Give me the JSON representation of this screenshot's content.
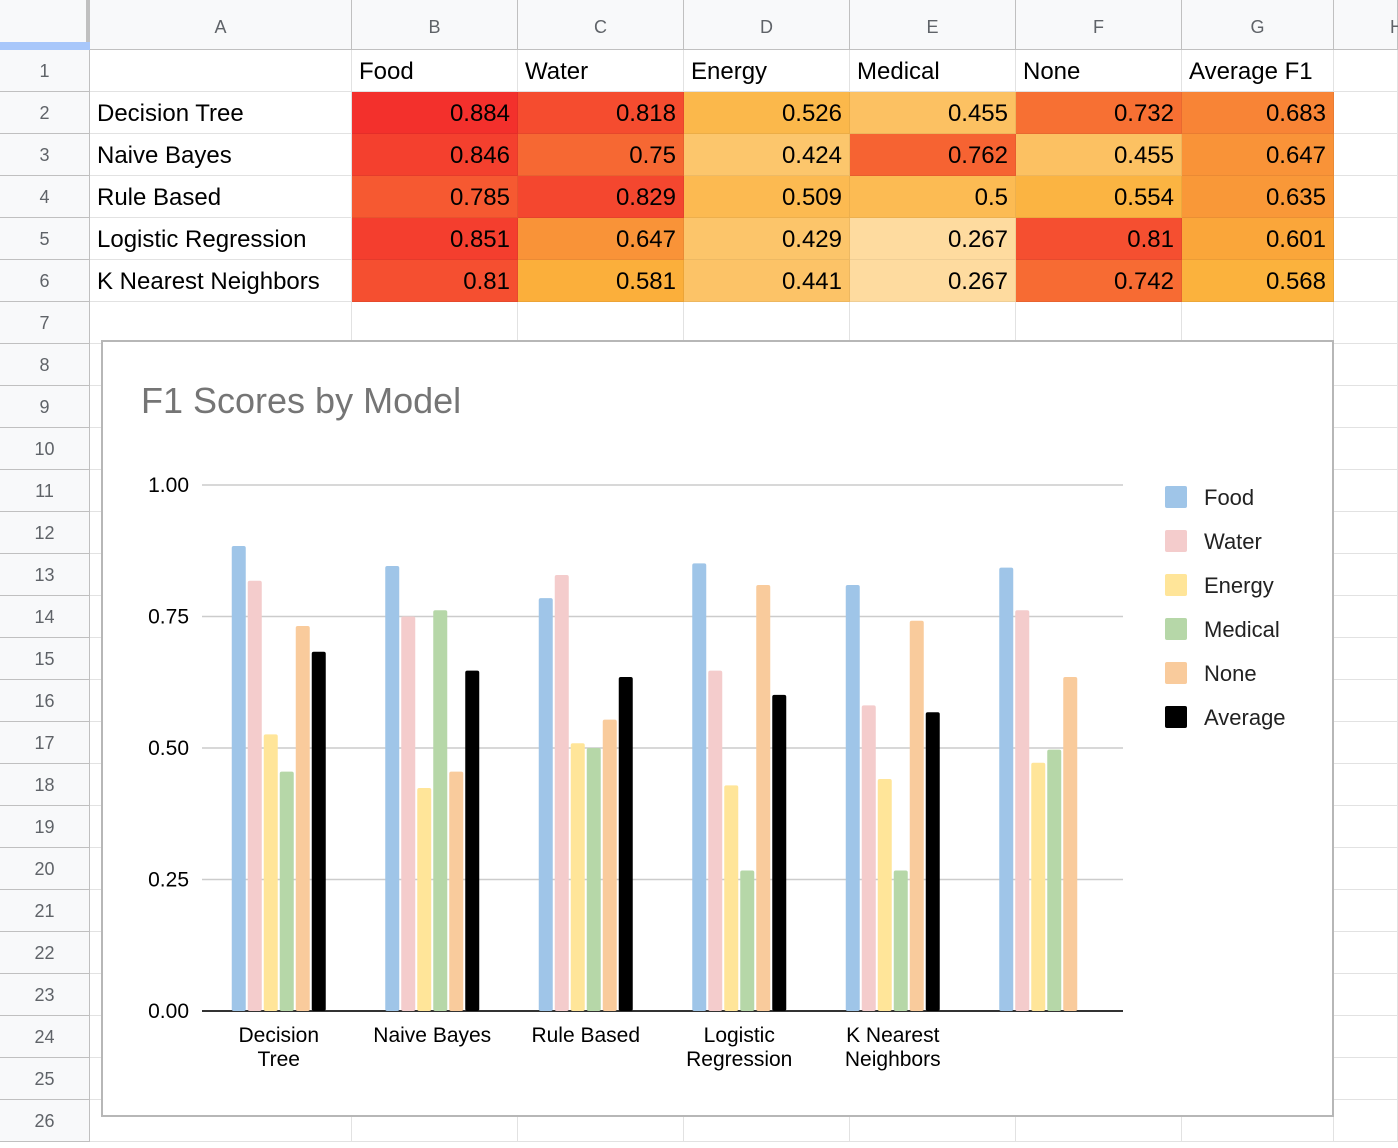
{
  "sheet": {
    "column_headers": [
      "A",
      "B",
      "C",
      "D",
      "E",
      "F",
      "G",
      "H"
    ],
    "row_headers": [
      "1",
      "2",
      "3",
      "4",
      "5",
      "6",
      "7",
      "8",
      "9",
      "10",
      "11",
      "12",
      "13",
      "14",
      "15",
      "16",
      "17",
      "18",
      "19",
      "20",
      "21",
      "22",
      "23",
      "24",
      "25",
      "26"
    ],
    "header_row": [
      "",
      "Food",
      "Water",
      "Energy",
      "Medical",
      "None",
      "Average F1"
    ],
    "rows": [
      {
        "model": "Decision Tree",
        "values": [
          "0.884",
          "0.818",
          "0.526",
          "0.455",
          "0.732",
          "0.683"
        ]
      },
      {
        "model": "Naive Bayes",
        "values": [
          "0.846",
          "0.75",
          "0.424",
          "0.762",
          "0.455",
          "0.647"
        ]
      },
      {
        "model": "Rule Based",
        "values": [
          "0.785",
          "0.829",
          "0.509",
          "0.5",
          "0.554",
          "0.635"
        ]
      },
      {
        "model": "Logistic Regression",
        "values": [
          "0.851",
          "0.647",
          "0.429",
          "0.267",
          "0.81",
          "0.601"
        ]
      },
      {
        "model": "K Nearest Neighbors",
        "values": [
          "0.81",
          "0.581",
          "0.441",
          "0.267",
          "0.742",
          "0.568"
        ]
      }
    ],
    "heatmap_colors": {
      "min": "#fedb9f",
      "mid": "#fbb13b",
      "max": "#f3302c"
    }
  },
  "chart_data": {
    "type": "bar",
    "title": "F1 Scores by Model",
    "xlabel": "",
    "ylabel": "",
    "ylim": [
      0,
      1
    ],
    "yticks": [
      "0.00",
      "0.25",
      "0.50",
      "0.75",
      "1.00"
    ],
    "grid": true,
    "legend_position": "right",
    "categories": [
      "Decision Tree",
      "Naive Bayes",
      "Rule Based",
      "Logistic Regression",
      "K Nearest Neighbors",
      ""
    ],
    "category_label_lines": [
      [
        "Decision",
        "Tree"
      ],
      [
        "Naive Bayes"
      ],
      [
        "Rule Based"
      ],
      [
        "Logistic",
        "Regression"
      ],
      [
        "K Nearest",
        "Neighbors"
      ],
      [
        ""
      ]
    ],
    "series": [
      {
        "name": "Food",
        "color": "#9fc5e8",
        "values": [
          0.884,
          0.846,
          0.785,
          0.851,
          0.81,
          0.843
        ]
      },
      {
        "name": "Water",
        "color": "#f4cccc",
        "values": [
          0.818,
          0.75,
          0.829,
          0.647,
          0.581,
          0.762
        ]
      },
      {
        "name": "Energy",
        "color": "#ffe599",
        "values": [
          0.526,
          0.424,
          0.509,
          0.429,
          0.441,
          0.472
        ]
      },
      {
        "name": "Medical",
        "color": "#b6d7a8",
        "values": [
          0.455,
          0.762,
          0.5,
          0.267,
          0.267,
          0.497
        ]
      },
      {
        "name": "None",
        "color": "#f9cb9c",
        "values": [
          0.732,
          0.455,
          0.554,
          0.81,
          0.742,
          0.635
        ]
      },
      {
        "name": "Average",
        "color": "#000000",
        "values": [
          0.683,
          0.647,
          0.635,
          0.601,
          0.568,
          null
        ]
      }
    ]
  }
}
